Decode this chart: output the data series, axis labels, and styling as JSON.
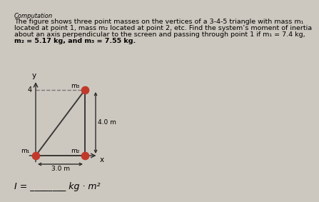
{
  "title": "Computation",
  "line1": "The figure shows three point masses on the vertices of a 3‑4‑5 triangle with mass m₁",
  "line2": "located at point 1, mass m₂ located at point 2, etc. Find the system’s moment of inertia",
  "line3": "about an axis perpendicular to the screen and passing through point 1 if m₁ = 7.4 kg,",
  "line4": "m₂ = 5.17 kg, and m₃ = 7.55 kg.",
  "footer_text": "I = ________ kg · m²",
  "bg_color": "#cdc8bf",
  "point1": [
    0,
    0
  ],
  "point2": [
    3,
    0
  ],
  "point3": [
    3,
    4
  ],
  "label1": "m₁",
  "label2": "m₂",
  "label3": "m₃",
  "dim_horizontal": "3.0 m",
  "dim_vertical": "4.0 m",
  "axis_y_label": "y",
  "axis_x_label": "x",
  "axis_y_tick": "4",
  "dot_color": "#c0392b",
  "dot_size": 55,
  "line_color": "#3a3a3a",
  "dashed_color": "#777777",
  "arrow_color": "#2c2c2c",
  "text_fontsize": 6.8,
  "title_fontsize": 6.0
}
